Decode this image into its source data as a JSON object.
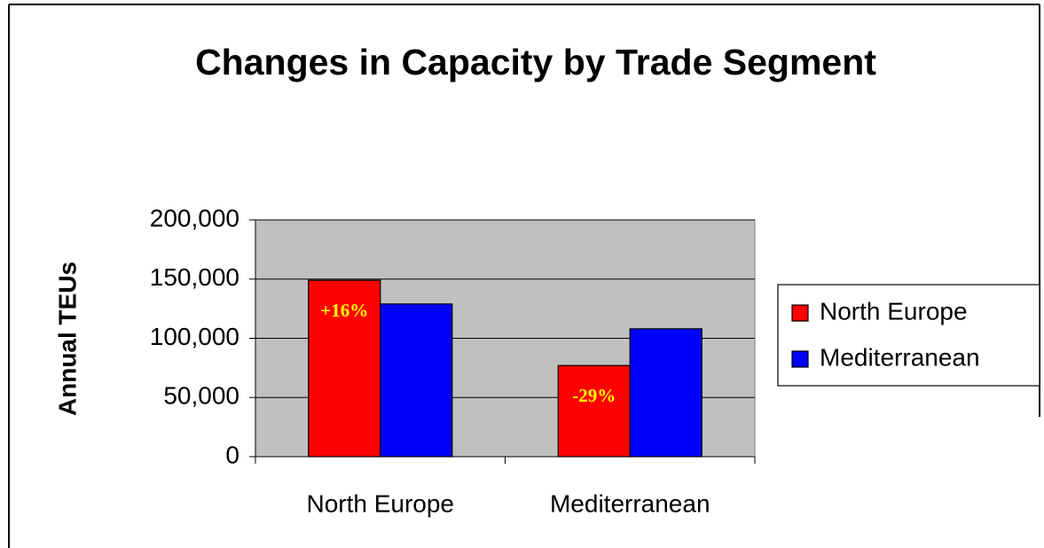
{
  "chart_data": {
    "type": "bar",
    "title": "Changes in Capacity by Trade Segment",
    "ylabel": "Annual TEUs",
    "categories": [
      "North Europe",
      "Mediterranean"
    ],
    "series": [
      {
        "name": "North Europe",
        "color": "#ff0000",
        "values": [
          149000,
          77000
        ]
      },
      {
        "name": "Mediterranean",
        "color": "#0000ff",
        "values": [
          129000,
          108000
        ]
      }
    ],
    "annotations": [
      "+16%",
      "-29%"
    ],
    "ylim": [
      0,
      200000
    ],
    "yticks": [
      0,
      {
        "value": 50000,
        "label": "50,000"
      },
      {
        "value": 100000,
        "label": "100,000"
      },
      {
        "value": 150000,
        "label": "150,000"
      },
      {
        "value": 200000,
        "label": "200,000"
      }
    ],
    "grid": true,
    "legend": "right",
    "plot_background": "#c0c0c0"
  }
}
